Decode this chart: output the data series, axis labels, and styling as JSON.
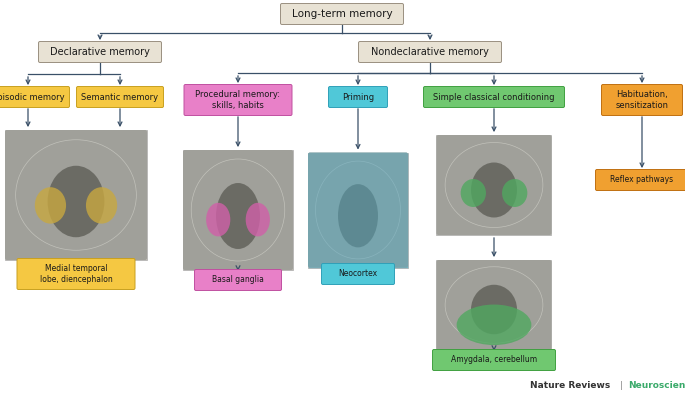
{
  "bg_color": "#ffffff",
  "arrow_color": "#3a5068",
  "box_lt": {
    "label": "Long-term memory",
    "fc": "#e8e2d4",
    "ec": "#9a9080",
    "fs": 7.5
  },
  "box_dec": {
    "label": "Declarative memory",
    "fc": "#e8e2d4",
    "ec": "#9a9080",
    "fs": 7.0
  },
  "box_nd": {
    "label": "Nondeclarative memory",
    "fc": "#e8e2d4",
    "ec": "#9a9080",
    "fs": 7.0
  },
  "box_ep": {
    "label": "Episodic memory",
    "fc": "#f5c842",
    "ec": "#c8a020",
    "fs": 6.0
  },
  "box_sem": {
    "label": "Semantic memory",
    "fc": "#f5c842",
    "ec": "#c8a020",
    "fs": 6.0
  },
  "box_proc": {
    "label": "Procedural memory:\nskills, habits",
    "fc": "#e880c8",
    "ec": "#c050a0",
    "fs": 6.0
  },
  "box_prim": {
    "label": "Priming",
    "fc": "#50c8d8",
    "ec": "#30a0b8",
    "fs": 6.0
  },
  "box_scc": {
    "label": "Simple classical conditioning",
    "fc": "#70c870",
    "ec": "#40a040",
    "fs": 6.0
  },
  "box_hab": {
    "label": "Habituation,\nsensitization",
    "fc": "#f0a030",
    "ec": "#c07010",
    "fs": 6.0
  },
  "box_med": {
    "label": "Medial temporal\nlobe, diencephalon",
    "fc": "#f5c842",
    "ec": "#c8a020",
    "fs": 5.5
  },
  "box_bas": {
    "label": "Basal ganglia",
    "fc": "#e880c8",
    "ec": "#c050a0",
    "fs": 5.5
  },
  "box_neo": {
    "label": "Neocortex",
    "fc": "#50c8d8",
    "ec": "#30a0b8",
    "fs": 5.5
  },
  "box_amy": {
    "label": "Amygdala, cerebellum",
    "fc": "#70c870",
    "ec": "#40a040",
    "fs": 5.5
  },
  "box_ref": {
    "label": "Reflex pathways",
    "fc": "#f0a030",
    "ec": "#c07010",
    "fs": 5.5
  },
  "footer_nr": "Nature Reviews",
  "footer_sep": " | ",
  "footer_ns": "Neuroscience",
  "footer_nr_color": "#333333",
  "footer_ns_color": "#3aaa6a"
}
